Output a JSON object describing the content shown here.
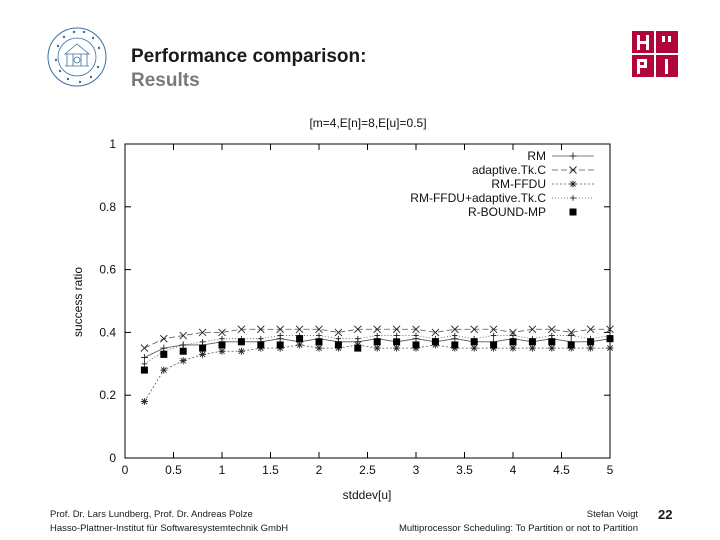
{
  "header": {
    "title": "Performance comparison:",
    "subtitle": "Results"
  },
  "footer": {
    "authors": "Prof. Dr. Lars Lundberg,  Prof. Dr. Andreas Polze",
    "institute": "Hasso-Plattner-Institut für Softwaresystemtechnik GmbH",
    "presenter": "Stefan Voigt",
    "talk_title": "Multiprocessor Scheduling: To Partition or not to Partition",
    "page_number": "22"
  },
  "colors": {
    "title": "#1a1a1a",
    "subtitle": "#7a7a7a",
    "hpi_red": "#b1063a"
  },
  "chart_data": {
    "type": "line",
    "title": "[m=4,E[n]=8,E[u]=0.5]",
    "xlabel": "stddev[u]",
    "ylabel": "success ratio",
    "xlim": [
      0,
      5
    ],
    "ylim": [
      0,
      1
    ],
    "xticks": [
      "0",
      "0.5",
      "1",
      "1.5",
      "2",
      "2.5",
      "3",
      "3.5",
      "4",
      "4.5",
      "5"
    ],
    "yticks": [
      "0",
      "0.2",
      "0.4",
      "0.6",
      "0.8",
      "1"
    ],
    "legend_position": "top-right",
    "grid": false,
    "x": [
      0.2,
      0.4,
      0.6,
      0.8,
      1.0,
      1.2,
      1.4,
      1.6,
      1.8,
      2.0,
      2.2,
      2.4,
      2.6,
      2.8,
      3.0,
      3.2,
      3.4,
      3.6,
      3.8,
      4.0,
      4.2,
      4.4,
      4.6,
      4.8,
      5.0
    ],
    "series": [
      {
        "name": "RM",
        "marker": "plus",
        "dash": "none",
        "values": [
          0.32,
          0.35,
          0.36,
          0.36,
          0.37,
          0.37,
          0.37,
          0.38,
          0.37,
          0.38,
          0.37,
          0.37,
          0.38,
          0.37,
          0.38,
          0.37,
          0.38,
          0.37,
          0.37,
          0.38,
          0.37,
          0.38,
          0.37,
          0.37,
          0.38
        ]
      },
      {
        "name": "adaptive.Tk.C",
        "marker": "x",
        "dash": "6,3",
        "values": [
          0.35,
          0.38,
          0.39,
          0.4,
          0.4,
          0.41,
          0.41,
          0.41,
          0.41,
          0.41,
          0.4,
          0.41,
          0.41,
          0.41,
          0.41,
          0.4,
          0.41,
          0.41,
          0.41,
          0.4,
          0.41,
          0.41,
          0.4,
          0.41,
          0.41
        ]
      },
      {
        "name": "RM-FFDU",
        "marker": "star",
        "dash": "2,2",
        "values": [
          0.18,
          0.28,
          0.31,
          0.33,
          0.34,
          0.34,
          0.35,
          0.35,
          0.36,
          0.35,
          0.35,
          0.36,
          0.35,
          0.35,
          0.35,
          0.36,
          0.35,
          0.35,
          0.35,
          0.35,
          0.35,
          0.35,
          0.35,
          0.35,
          0.35
        ]
      },
      {
        "name": "RM-FFDU+adaptive.Tk.C",
        "marker": "plus-small",
        "dash": "1,2",
        "values": [
          0.3,
          0.34,
          0.36,
          0.37,
          0.38,
          0.38,
          0.38,
          0.39,
          0.39,
          0.39,
          0.38,
          0.38,
          0.39,
          0.39,
          0.39,
          0.38,
          0.39,
          0.38,
          0.39,
          0.39,
          0.38,
          0.39,
          0.39,
          0.38,
          0.39
        ]
      },
      {
        "name": "R-BOUND-MP",
        "marker": "square",
        "dash": "points",
        "values": [
          0.28,
          0.33,
          0.34,
          0.35,
          0.36,
          0.37,
          0.36,
          0.36,
          0.38,
          0.37,
          0.36,
          0.35,
          0.37,
          0.37,
          0.36,
          0.37,
          0.36,
          0.37,
          0.36,
          0.37,
          0.37,
          0.37,
          0.36,
          0.37,
          0.38
        ]
      }
    ]
  }
}
